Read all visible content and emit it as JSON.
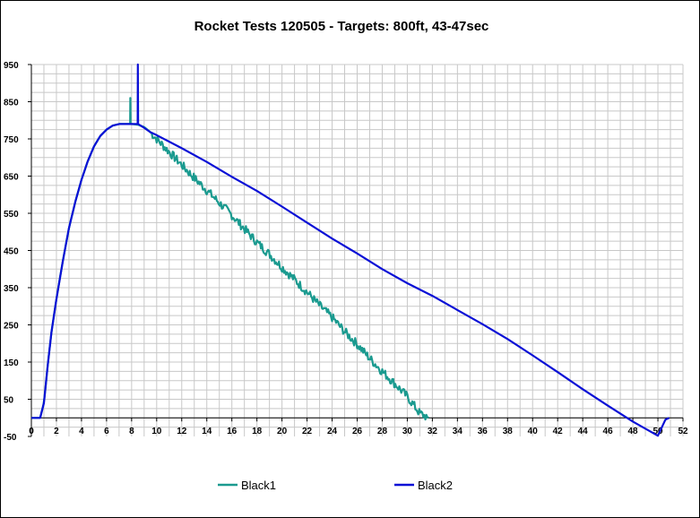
{
  "chart_data": {
    "type": "line",
    "title": "Rocket Tests 120505 - Targets: 800ft, 43-47sec",
    "xlabel": "",
    "ylabel": "",
    "xlim": [
      0,
      52
    ],
    "ylim": [
      -50,
      950
    ],
    "x_ticks": [
      0,
      2,
      4,
      6,
      8,
      10,
      12,
      14,
      16,
      18,
      20,
      22,
      24,
      26,
      28,
      30,
      32,
      34,
      36,
      38,
      40,
      42,
      44,
      46,
      48,
      50,
      52
    ],
    "y_ticks": [
      -50,
      50,
      150,
      250,
      350,
      450,
      550,
      650,
      750,
      850,
      950
    ],
    "grid": true,
    "legend_position": "bottom",
    "series": [
      {
        "name": "Black1",
        "color": "#1a9a8f",
        "noisy_from_x": 9.5,
        "noise_amplitude": 12,
        "spike": {
          "x": 7.9,
          "y": 860
        },
        "x": [
          0,
          0.7,
          1.0,
          1.3,
          1.6,
          2.0,
          2.5,
          3.0,
          3.5,
          4.0,
          4.5,
          5.0,
          5.5,
          6.0,
          6.5,
          7.0,
          7.5,
          8.0,
          8.5,
          9.0,
          9.5,
          10,
          11,
          12,
          13,
          14,
          15,
          16,
          17,
          18,
          19,
          20,
          21,
          22,
          23,
          24,
          25,
          26,
          27,
          28,
          29,
          30,
          31,
          31.7
        ],
        "y": [
          0,
          0,
          40,
          140,
          230,
          320,
          420,
          510,
          580,
          640,
          690,
          730,
          758,
          775,
          786,
          790,
          790,
          790,
          788,
          782,
          768,
          750,
          715,
          680,
          645,
          612,
          578,
          545,
          508,
          472,
          440,
          405,
          372,
          338,
          302,
          270,
          232,
          198,
          160,
          125,
          92,
          57,
          12,
          0
        ]
      },
      {
        "name": "Black2",
        "color": "#0a10d6",
        "spike": {
          "x": 8.5,
          "y": 950
        },
        "x": [
          0,
          0.7,
          1.0,
          1.3,
          1.6,
          2.0,
          2.5,
          3.0,
          3.5,
          4.0,
          4.5,
          5.0,
          5.5,
          6.0,
          6.5,
          7.0,
          7.5,
          8.0,
          8.5,
          9.0,
          9.5,
          10,
          12,
          14,
          16,
          18,
          20,
          22,
          24,
          26,
          28,
          30,
          32,
          34,
          36,
          38,
          40,
          42,
          44,
          46,
          48,
          50,
          50.6,
          50.9
        ],
        "y": [
          0,
          0,
          40,
          140,
          230,
          320,
          420,
          510,
          580,
          640,
          690,
          730,
          758,
          775,
          786,
          790,
          790,
          790,
          790,
          780,
          768,
          760,
          725,
          688,
          648,
          610,
          568,
          525,
          482,
          442,
          400,
          362,
          328,
          290,
          252,
          212,
          168,
          123,
          77,
          33,
          -10,
          -48,
          -5,
          0
        ]
      }
    ]
  }
}
